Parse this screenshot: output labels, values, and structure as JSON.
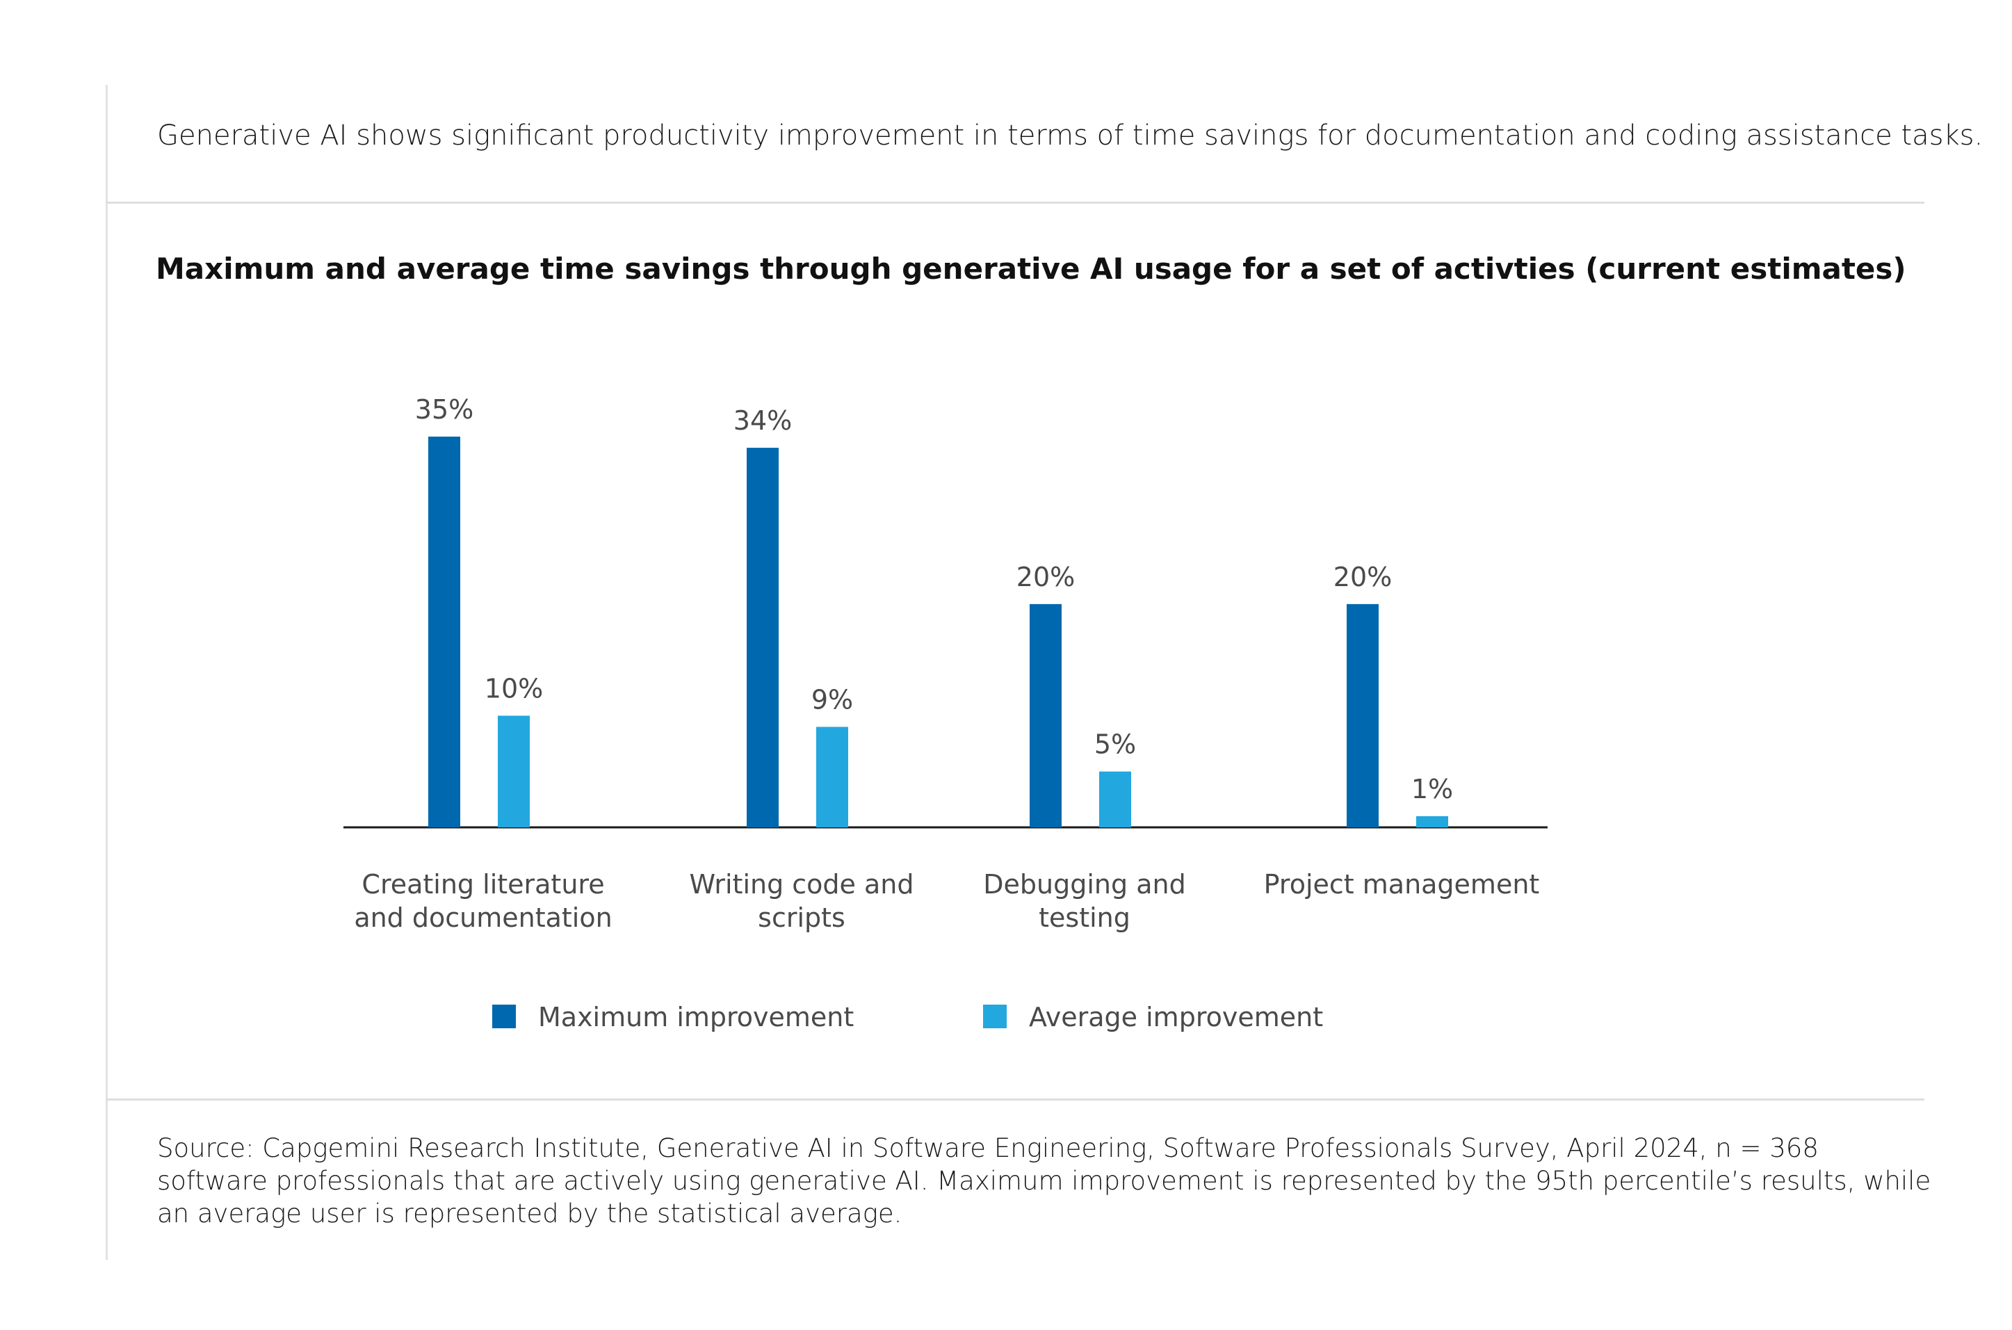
{
  "intro_text": "Generative AI shows significant productivity improvement in terms of time savings for documentation and coding assistance tasks.",
  "source_text": "Source: Capgemini Research Institute, Generative AI in Software Engineering, Software Professionals Survey, April 2024, n = 368 software professionals that are actively using generative AI. Maximum improvement is represented by the 95th percentile’s results, while an average user is represented by the statistical average.",
  "colors": {
    "maximum": "#0068ae",
    "average": "#22a8de",
    "axis": "#1a1a1a"
  },
  "chart_data": {
    "type": "bar",
    "title": "Maximum and average time savings through generative AI usage for a set of activties (current estimates)",
    "categories": [
      [
        "Creating literature",
        "and documentation"
      ],
      [
        "Writing code and",
        "scripts"
      ],
      [
        "Debugging and",
        "testing"
      ],
      [
        "Project management"
      ]
    ],
    "series": [
      {
        "name": "Maximum improvement",
        "values": [
          35,
          34,
          20,
          20
        ],
        "labels": [
          "35%",
          "34%",
          "20%",
          "20%"
        ]
      },
      {
        "name": "Average improvement",
        "values": [
          10,
          9,
          5,
          1
        ],
        "labels": [
          "10%",
          "9%",
          "5%",
          "1%"
        ]
      }
    ],
    "ylim": [
      0,
      35
    ],
    "xlabel": "",
    "ylabel": "",
    "legend_position": "bottom",
    "grid": false
  }
}
